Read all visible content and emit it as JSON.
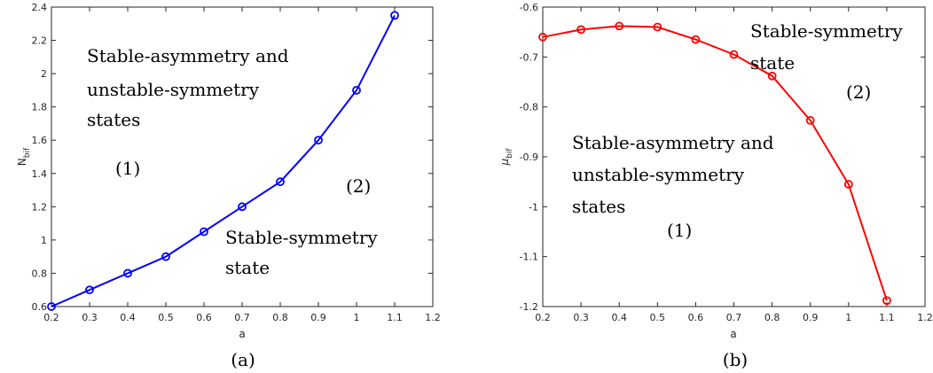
{
  "chart_data": [
    {
      "type": "line",
      "x": [
        0.2,
        0.3,
        0.4,
        0.5,
        0.6,
        0.7,
        0.8,
        0.9,
        1.0,
        1.1
      ],
      "series": [
        {
          "color": "#0000ff",
          "marker": "circle",
          "values": [
            0.6,
            0.7,
            0.8,
            0.9,
            1.05,
            1.2,
            1.35,
            1.6,
            1.9,
            2.35
          ]
        }
      ],
      "xlabel": "a",
      "ylabel_main": "N",
      "ylabel_sub": "bif",
      "xlim": [
        0.2,
        1.2
      ],
      "ylim": [
        0.6,
        2.4
      ],
      "xticks": [
        "0.2",
        "0.3",
        "0.4",
        "0.5",
        "0.6",
        "0.7",
        "0.8",
        "0.9",
        "1",
        "1.1",
        "1.2"
      ],
      "yticks": [
        "0.6",
        "0.8",
        "1",
        "1.2",
        "1.4",
        "1.6",
        "1.8",
        "2",
        "2.2",
        "2.4"
      ],
      "grid": false,
      "annotations": [
        "Stable-asymmetry and",
        "unstable-symmetry",
        "states",
        "(1)",
        "(2)",
        "Stable-symmetry",
        "state"
      ],
      "caption": "(a)"
    },
    {
      "type": "line",
      "x": [
        0.2,
        0.3,
        0.4,
        0.5,
        0.6,
        0.7,
        0.8,
        0.9,
        1.0,
        1.1
      ],
      "series": [
        {
          "color": "#ff0000",
          "marker": "circle",
          "values": [
            -0.66,
            -0.645,
            -0.638,
            -0.64,
            -0.665,
            -0.695,
            -0.738,
            -0.827,
            -0.955,
            -1.188
          ]
        }
      ],
      "xlabel": "a",
      "ylabel_main": "μ",
      "ylabel_sub": "bif",
      "xlim": [
        0.2,
        1.2
      ],
      "ylim": [
        -1.2,
        -0.6
      ],
      "xticks": [
        "0.2",
        "0.3",
        "0.4",
        "0.5",
        "0.6",
        "0.7",
        "0.8",
        "0.9",
        "1",
        "1.1",
        "1.2"
      ],
      "yticks": [
        "-1.2",
        "-1.1",
        "-1",
        "-0.9",
        "-0.8",
        "-0.7",
        "-0.6"
      ],
      "grid": false,
      "annotations": [
        "Stable-symmetry",
        "state",
        "(2)",
        "Stable-asymmetry and",
        "unstable-symmetry",
        "states",
        "(1)"
      ],
      "caption": "(b)"
    }
  ]
}
